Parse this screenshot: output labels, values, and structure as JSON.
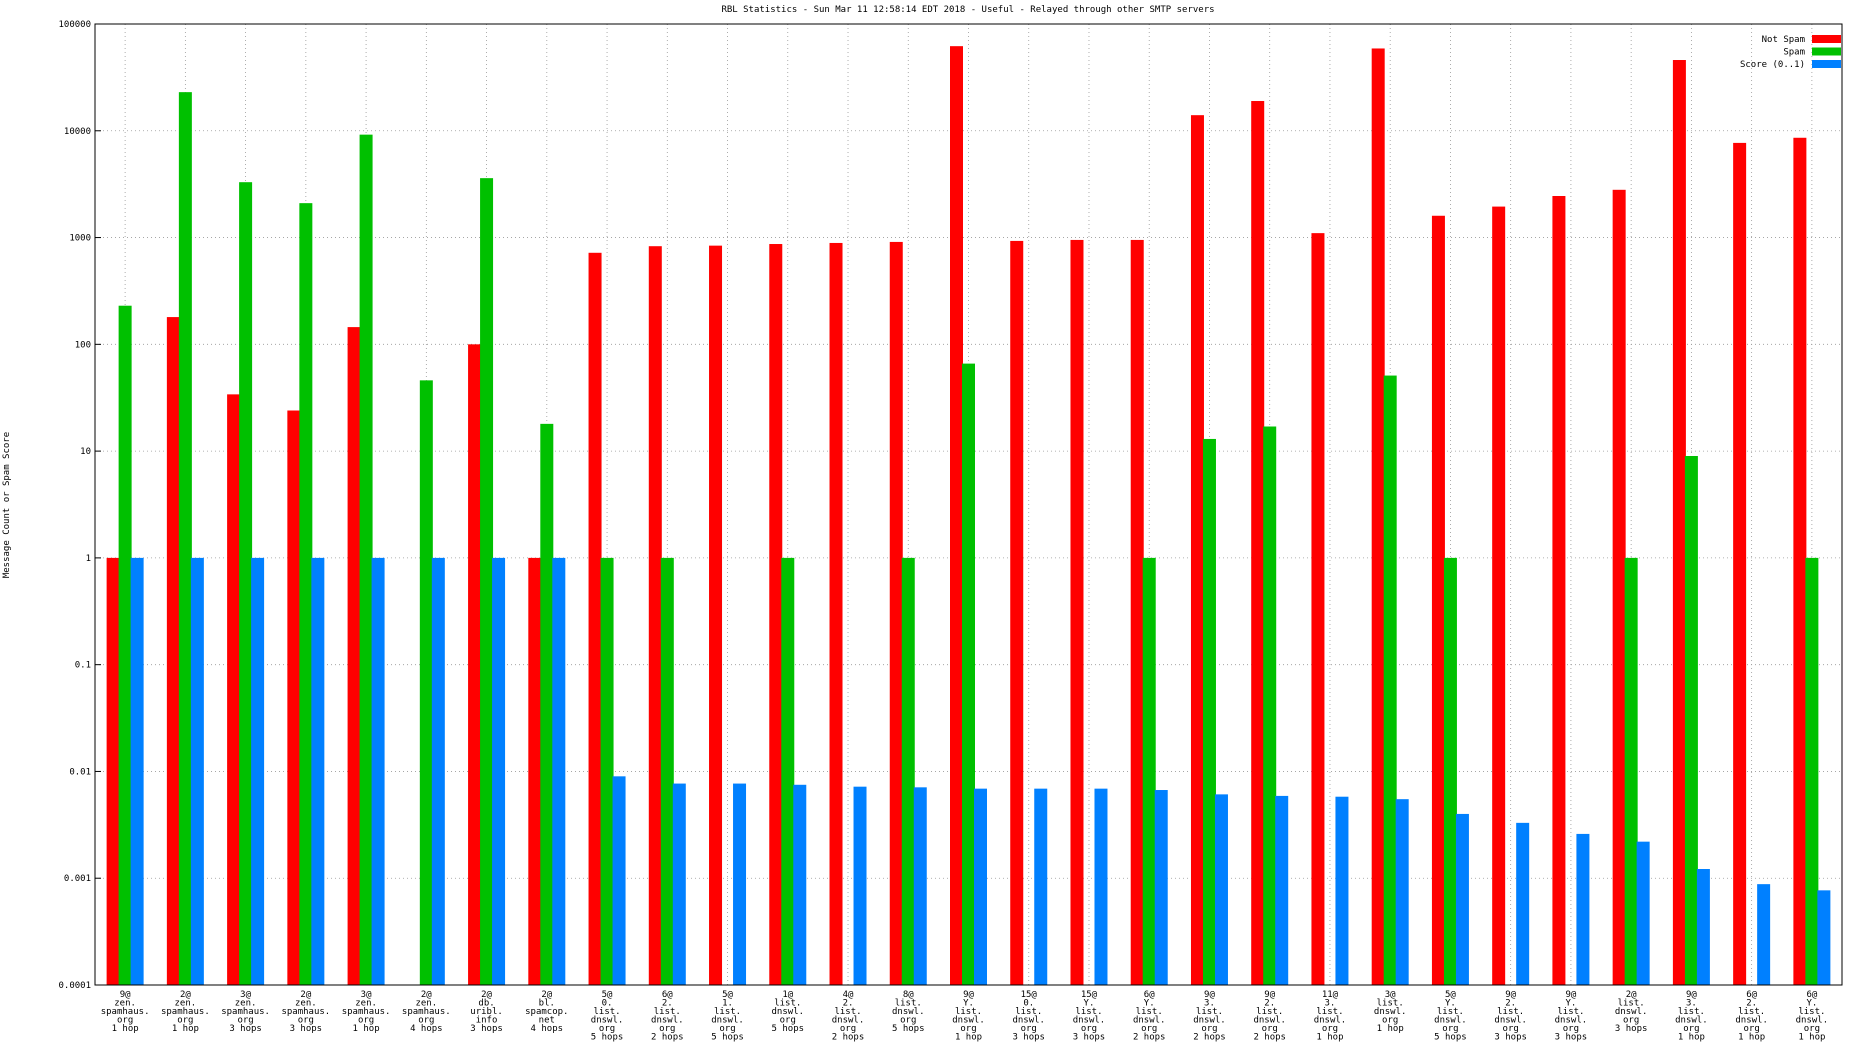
{
  "chart_data": {
    "type": "bar",
    "title": "RBL Statistics - Sun Mar 11 12:58:14 EDT 2018 - Useful - Relayed through other SMTP servers",
    "y_label": "Message Count or Spam Score",
    "log_scale": true,
    "grid": true,
    "legend": "top-right",
    "ylim": [
      0.0001,
      100000
    ],
    "yticks": [
      0.0001,
      0.001,
      0.01,
      0.1,
      1,
      10,
      100,
      1000,
      10000,
      100000
    ],
    "categories": [
      [
        "9@",
        "zen.",
        "spamhaus.",
        "org",
        "1 hop"
      ],
      [
        "2@",
        "zen.",
        "spamhaus.",
        "org",
        "1 hop"
      ],
      [
        "3@",
        "zen.",
        "spamhaus.",
        "org",
        "3 hops"
      ],
      [
        "2@",
        "zen.",
        "spamhaus.",
        "org",
        "3 hops"
      ],
      [
        "3@",
        "zen.",
        "spamhaus.",
        "org",
        "1 hop"
      ],
      [
        "2@",
        "zen.",
        "spamhaus.",
        "org",
        "4 hops"
      ],
      [
        "2@",
        "db.",
        "uribl.",
        "info",
        "3 hops"
      ],
      [
        "2@",
        "bl.",
        "spamcop.",
        "net",
        "4 hops"
      ],
      [
        "5@",
        "0.",
        "list.",
        "dnswl.",
        "org",
        "5 hops"
      ],
      [
        "6@",
        "2.",
        "list.",
        "dnswl.",
        "org",
        "2 hops"
      ],
      [
        "5@",
        "1.",
        "list.",
        "dnswl.",
        "org",
        "5 hops"
      ],
      [
        "1@",
        "list.",
        "dnswl.",
        "org",
        "5 hops"
      ],
      [
        "4@",
        "2.",
        "list.",
        "dnswl.",
        "org",
        "2 hops"
      ],
      [
        "8@",
        "list.",
        "dnswl.",
        "org",
        "5 hops"
      ],
      [
        "9@",
        "Y.",
        "list.",
        "dnswl.",
        "org",
        "1 hop"
      ],
      [
        "15@",
        "0.",
        "list.",
        "dnswl.",
        "org",
        "3 hops"
      ],
      [
        "15@",
        "Y.",
        "list.",
        "dnswl.",
        "org",
        "3 hops"
      ],
      [
        "6@",
        "Y.",
        "list.",
        "dnswl.",
        "org",
        "2 hops"
      ],
      [
        "9@",
        "3.",
        "list.",
        "dnswl.",
        "org",
        "2 hops"
      ],
      [
        "9@",
        "2.",
        "list.",
        "dnswl.",
        "org",
        "2 hops"
      ],
      [
        "11@",
        "3.",
        "list.",
        "dnswl.",
        "org",
        "1 hop"
      ],
      [
        "3@",
        "list.",
        "dnswl.",
        "org",
        "1 hop"
      ],
      [
        "5@",
        "Y.",
        "list.",
        "dnswl.",
        "org",
        "5 hops"
      ],
      [
        "9@",
        "2.",
        "list.",
        "dnswl.",
        "org",
        "3 hops"
      ],
      [
        "9@",
        "Y.",
        "list.",
        "dnswl.",
        "org",
        "3 hops"
      ],
      [
        "2@",
        "list.",
        "dnswl.",
        "org",
        "3 hops"
      ],
      [
        "9@",
        "3.",
        "list.",
        "dnswl.",
        "org",
        "1 hop"
      ],
      [
        "6@",
        "2.",
        "list.",
        "dnswl.",
        "org",
        "1 hop"
      ],
      [
        "6@",
        "Y.",
        "list.",
        "dnswl.",
        "org",
        "1 hop"
      ]
    ],
    "series": [
      {
        "name": "Not Spam",
        "color": "#ff0000",
        "values": [
          1,
          180,
          34,
          24,
          145,
          null,
          100,
          1,
          720,
          830,
          840,
          870,
          890,
          910,
          62000,
          930,
          950,
          950,
          14000,
          19000,
          1100,
          59000,
          1600,
          1950,
          2450,
          2800,
          46000,
          7700,
          8600
        ]
      },
      {
        "name": "Spam",
        "color": "#00c000",
        "values": [
          230,
          23000,
          3300,
          2100,
          9200,
          46,
          3600,
          18,
          1,
          1,
          null,
          1,
          null,
          1,
          66,
          null,
          null,
          1,
          13,
          17,
          null,
          51,
          1,
          null,
          null,
          1,
          9,
          null,
          1
        ]
      },
      {
        "name": "Score (0..1)",
        "color": "#0080ff",
        "values": [
          1,
          1,
          1,
          1,
          1,
          1,
          1,
          1,
          0.009,
          0.0077,
          0.0077,
          0.0075,
          0.0072,
          0.0071,
          0.0069,
          0.0069,
          0.0069,
          0.0067,
          0.0061,
          0.0059,
          0.0058,
          0.0055,
          0.004,
          0.0033,
          0.0026,
          0.0022,
          0.00122,
          0.00088,
          0.00077
        ]
      }
    ]
  }
}
